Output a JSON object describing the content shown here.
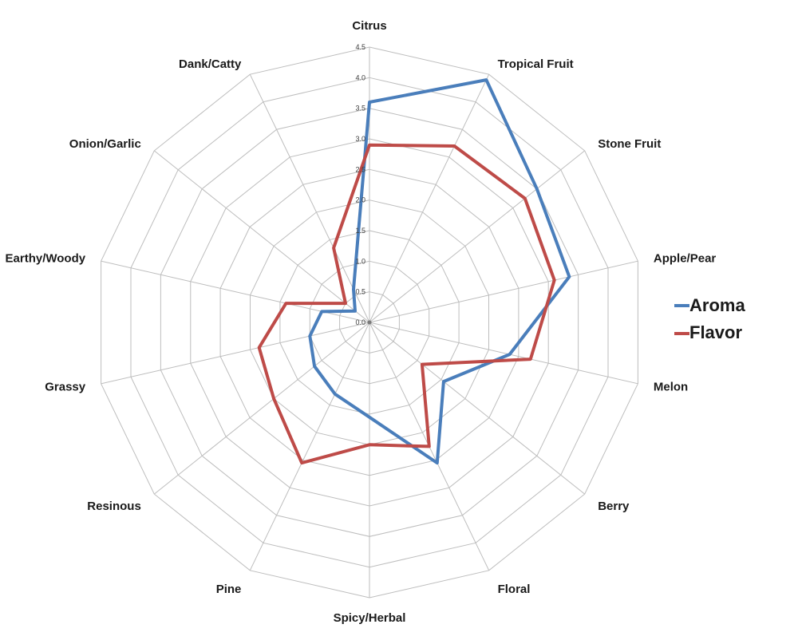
{
  "chart_data": {
    "type": "radar",
    "title": "",
    "categories": [
      "Citrus",
      "Tropical Fruit",
      "Stone Fruit",
      "Apple/Pear",
      "Melon",
      "Berry",
      "Floral",
      "Spicy/Herbal",
      "Pine",
      "Resinous",
      "Grassy",
      "Earthy/Woody",
      "Onion/Garlic",
      "Dank/Catty"
    ],
    "series": [
      {
        "name": "Aroma",
        "color": "#4A7EBB",
        "values": [
          3.6,
          4.4,
          3.5,
          3.35,
          2.35,
          1.55,
          2.55,
          1.55,
          1.3,
          1.15,
          1.0,
          0.8,
          0.3,
          0.6
        ]
      },
      {
        "name": "Flavor",
        "color": "#BE4B48",
        "values": [
          2.9,
          3.2,
          3.25,
          3.1,
          2.7,
          1.1,
          2.25,
          2.0,
          2.55,
          2.0,
          1.85,
          1.4,
          0.5,
          1.35
        ]
      }
    ],
    "radial_axis": {
      "min": 0,
      "max": 4.5,
      "step": 0.5,
      "tick_labels": [
        "0.0",
        "0.5",
        "1.0",
        "1.5",
        "2.0",
        "2.5",
        "3.0",
        "3.5",
        "4.0",
        "4.5"
      ]
    },
    "grid": {
      "show": true,
      "color": "#BDBDBD"
    },
    "legend": {
      "position": "right"
    }
  }
}
